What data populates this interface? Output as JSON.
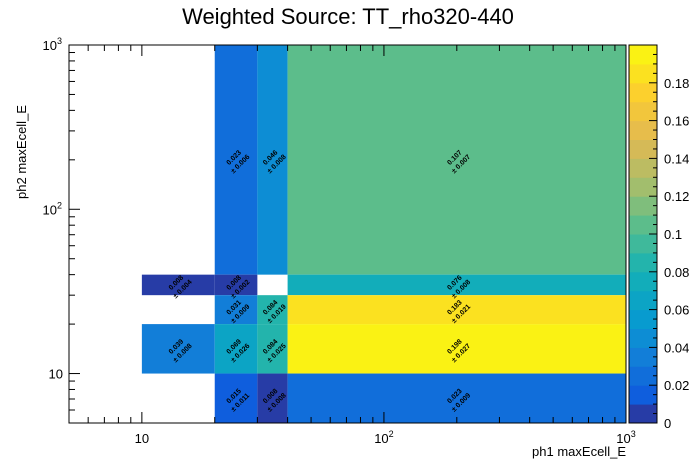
{
  "chart_data": {
    "type": "heatmap",
    "title": "Weighted Source: TT_rho320-440",
    "xlabel": "ph1 maxEcell_E",
    "ylabel": "ph2 maxEcell_E",
    "x_scale": "log",
    "y_scale": "log",
    "xlim": [
      5,
      1000
    ],
    "ylim": [
      5,
      1000
    ],
    "x_ticks": [
      {
        "value": 10,
        "label": "10"
      },
      {
        "value": 100,
        "label": "10",
        "exp": "2"
      },
      {
        "value": 1000,
        "label": "10",
        "exp": "3"
      }
    ],
    "y_ticks": [
      {
        "value": 10,
        "label": "10"
      },
      {
        "value": 100,
        "label": "10",
        "exp": "2"
      },
      {
        "value": 1000,
        "label": "10",
        "exp": "3"
      }
    ],
    "zlim": [
      0,
      0.2
    ],
    "z_ticks": [
      "0",
      "0.02",
      "0.04",
      "0.06",
      "0.08",
      "0.1",
      "0.12",
      "0.14",
      "0.16",
      "0.18"
    ],
    "cells": [
      {
        "x": [
          20,
          30
        ],
        "y": [
          40,
          1000
        ],
        "value": 0.023,
        "error": 0.006,
        "value_label": "0.023",
        "error_label": "± 0.006"
      },
      {
        "x": [
          30,
          40
        ],
        "y": [
          40,
          1000
        ],
        "value": 0.046,
        "error": 0.008,
        "value_label": "0.046",
        "error_label": "± 0.008"
      },
      {
        "x": [
          40,
          1000
        ],
        "y": [
          40,
          1000
        ],
        "value": 0.107,
        "error": 0.007,
        "value_label": "0.107",
        "error_label": "± 0.007"
      },
      {
        "x": [
          10,
          20
        ],
        "y": [
          30,
          40
        ],
        "value": 0.008,
        "error": 0.004,
        "value_label": "0.008",
        "error_label": "± 0.004"
      },
      {
        "x": [
          20,
          30
        ],
        "y": [
          30,
          40
        ],
        "value": 0.008,
        "error": 0.002,
        "value_label": "0.008",
        "error_label": "± 0.002"
      },
      {
        "x": [
          40,
          1000
        ],
        "y": [
          30,
          40
        ],
        "value": 0.076,
        "error": 0.008,
        "value_label": "0.076",
        "error_label": "± 0.008"
      },
      {
        "x": [
          20,
          30
        ],
        "y": [
          20,
          30
        ],
        "value": 0.031,
        "error": 0.009,
        "value_label": "0.031",
        "error_label": "± 0.009"
      },
      {
        "x": [
          30,
          40
        ],
        "y": [
          20,
          30
        ],
        "value": 0.084,
        "error": 0.019,
        "value_label": "0.084",
        "error_label": "± 0.019"
      },
      {
        "x": [
          40,
          1000
        ],
        "y": [
          20,
          30
        ],
        "value": 0.183,
        "error": 0.021,
        "value_label": "0.183",
        "error_label": "± 0.021"
      },
      {
        "x": [
          10,
          20
        ],
        "y": [
          10,
          20
        ],
        "value": 0.039,
        "error": 0.008,
        "value_label": "0.039",
        "error_label": "± 0.008"
      },
      {
        "x": [
          20,
          30
        ],
        "y": [
          10,
          20
        ],
        "value": 0.069,
        "error": 0.026,
        "value_label": "0.069",
        "error_label": "± 0.026"
      },
      {
        "x": [
          30,
          40
        ],
        "y": [
          10,
          20
        ],
        "value": 0.084,
        "error": 0.025,
        "value_label": "0.084",
        "error_label": "± 0.025"
      },
      {
        "x": [
          40,
          1000
        ],
        "y": [
          10,
          20
        ],
        "value": 0.198,
        "error": 0.027,
        "value_label": "0.198",
        "error_label": "± 0.027"
      },
      {
        "x": [
          20,
          30
        ],
        "y": [
          5,
          10
        ],
        "value": 0.015,
        "error": 0.011,
        "value_label": "0.015",
        "error_label": "± 0.011"
      },
      {
        "x": [
          30,
          40
        ],
        "y": [
          5,
          10
        ],
        "value": 0.008,
        "error": 0.008,
        "value_label": "0.008",
        "error_label": "± 0.008"
      },
      {
        "x": [
          40,
          1000
        ],
        "y": [
          5,
          10
        ],
        "value": 0.023,
        "error": 0.009,
        "value_label": "0.023",
        "error_label": "± 0.009"
      }
    ],
    "legend": "color palette on right",
    "grid": false
  }
}
